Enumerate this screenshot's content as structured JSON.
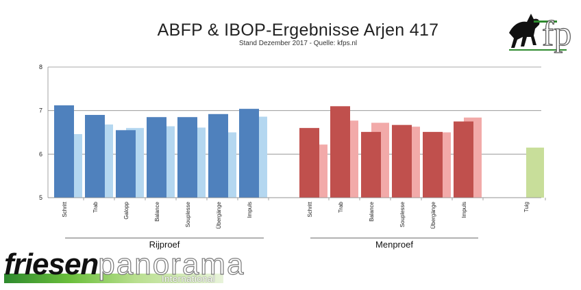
{
  "chart_data": {
    "type": "bar",
    "title": "ABFP & IBOP-Ergebnisse Arjen 417",
    "subtitle": "Stand Dezember 2017 - Quelle: kfps.nl",
    "ylim": [
      5,
      8
    ],
    "yticks": [
      5,
      6,
      7,
      8
    ],
    "grid": true,
    "groups": [
      {
        "label": "Rijproef",
        "primary_color": "#4f81bd",
        "secondary_color": "#b4d7f0",
        "categories": [
          "Schritt",
          "Trab",
          "Galopp",
          "Balance",
          "Souplesse",
          "Übergänge",
          "Impuls"
        ],
        "series": [
          {
            "values": [
              7.12,
              6.9,
              6.55,
              6.85,
              6.85,
              6.92,
              7.04
            ]
          },
          {
            "values": [
              6.46,
              6.68,
              6.6,
              6.64,
              6.61,
              6.5,
              6.86
            ]
          }
        ]
      },
      {
        "label": "Menproef",
        "primary_color": "#c0504d",
        "secondary_color": "#f2aaa9",
        "categories": [
          "Schritt",
          "Trab",
          "Balance",
          "Souplesse",
          "Übergänge",
          "Impuls"
        ],
        "series": [
          {
            "values": [
              6.6,
              7.1,
              6.51,
              6.67,
              6.51,
              6.75
            ]
          },
          {
            "values": [
              6.22,
              6.77,
              6.72,
              6.63,
              6.5,
              6.84
            ]
          }
        ]
      },
      {
        "label": "",
        "primary_color": "#d7e4bd",
        "secondary_color": "#c8de9a",
        "categories": [
          "Tuig"
        ],
        "series": [
          {
            "values": [
              null
            ]
          },
          {
            "values": [
              6.15
            ]
          }
        ]
      }
    ]
  },
  "branding": {
    "name_bold": "friesen",
    "name_thin": "panorama",
    "name_sub": "International",
    "logo_letters": "fp"
  }
}
